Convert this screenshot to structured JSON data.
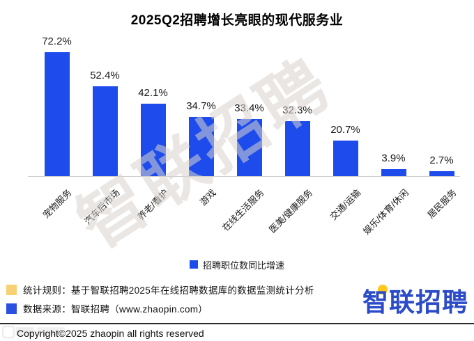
{
  "chart_data": {
    "type": "bar",
    "title": "2025Q2招聘增长亮眼的现代服务业",
    "categories": [
      "宠物服务",
      "汽车后市场",
      "养老/看护",
      "游戏",
      "在线生活服务",
      "医美/健康服务",
      "交通/运输",
      "娱乐/体育/休闲",
      "居民服务"
    ],
    "values": [
      72.2,
      52.4,
      42.1,
      34.7,
      33.4,
      32.3,
      20.7,
      3.9,
      2.7
    ],
    "value_label_suffix": "%",
    "series_name": "招聘职位数同比增速",
    "legend": [
      "招聘职位数同比增速"
    ],
    "legend_position": "bottom",
    "xlabel": "",
    "ylabel": "",
    "ylim": [
      0,
      80
    ],
    "grid": false,
    "bar_color": "#1d4bec"
  },
  "watermark": {
    "text": "智联招聘"
  },
  "footer": {
    "note1": "统计规则：基于智联招聘2025年在线招聘数据库的数据监测统计分析",
    "note2": "数据来源：智联招聘（www.zhaopin.com）",
    "logo_text": "智联招聘",
    "copyright": "Copyright©2025 zhaopin all rights reserved"
  },
  "colors": {
    "bar": "#1d4bec",
    "legend_swatch": "#1d4bec",
    "note1_swatch": "#f7d173",
    "note2_swatch": "#2b50e0",
    "logo_blue": "#2b4bc8",
    "logo_dot_yellow": "#ffc81e",
    "axis_line": "#c9c9c9",
    "watermark_gray": "#d8d3ce"
  }
}
